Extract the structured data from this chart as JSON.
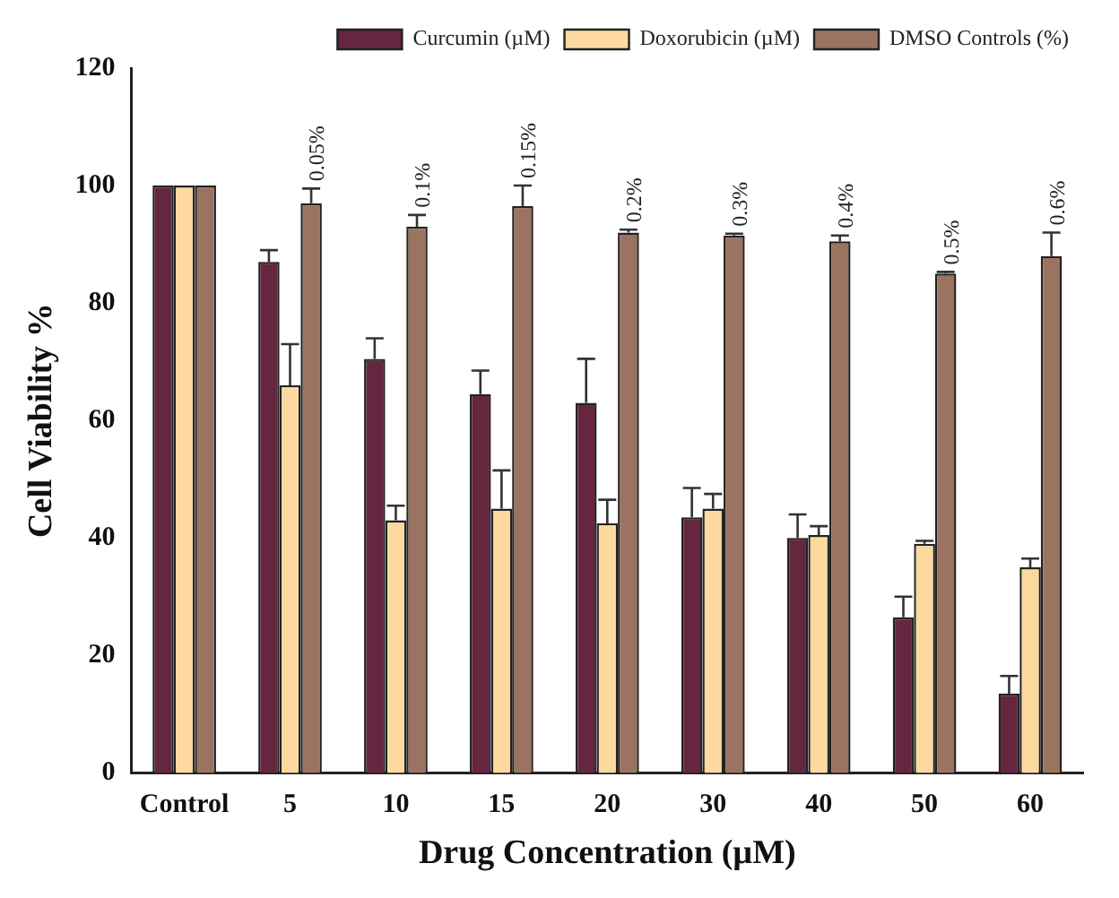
{
  "chart_data": {
    "type": "bar",
    "xlabel": "Drug Concentration (µM)",
    "ylabel": "Cell Viability %",
    "categories": [
      "Control",
      "5",
      "10",
      "15",
      "20",
      "30",
      "40",
      "50",
      "60"
    ],
    "series": [
      {
        "name": "Curcumin (µM)",
        "color": "#65263f",
        "values": [
          100,
          87,
          70.5,
          64.5,
          63,
          43.5,
          40,
          26.5,
          13.5
        ],
        "errors": [
          null,
          [
            87,
            89
          ],
          [
            70.5,
            74
          ],
          [
            64.5,
            68.5
          ],
          [
            63,
            70.5
          ],
          [
            43.5,
            48.5
          ],
          [
            40,
            44
          ],
          [
            26.5,
            30
          ],
          [
            13.5,
            16.5
          ]
        ]
      },
      {
        "name": "Doxorubicin (µM)",
        "color": "#fdd9a0",
        "values": [
          100,
          66,
          43,
          45,
          42.5,
          45,
          40.5,
          39,
          35
        ],
        "errors": [
          null,
          [
            66,
            73
          ],
          [
            43,
            45.5
          ],
          [
            45,
            51.5
          ],
          [
            42.5,
            46.5
          ],
          [
            45,
            47.5
          ],
          [
            40.5,
            42
          ],
          [
            39,
            39.5
          ],
          [
            35,
            36.5
          ]
        ]
      },
      {
        "name": "DMSO Controls (%)",
        "color": "#9b7360",
        "values": [
          100,
          97,
          93,
          96.5,
          92,
          91.5,
          90.5,
          85,
          88
        ],
        "errors": [
          null,
          [
            97,
            99.5
          ],
          [
            93,
            95
          ],
          [
            96.5,
            100
          ],
          [
            92,
            92.5
          ],
          [
            91.5,
            91.8
          ],
          [
            90.5,
            91.5
          ],
          [
            85,
            85.3
          ],
          [
            88,
            92
          ]
        ]
      }
    ],
    "annotations": [
      "0.05%",
      "0.1%",
      "0.15%",
      "0.2%",
      "0.3%",
      "0.4%",
      "0.5%",
      "0.6%"
    ],
    "ylim": [
      0,
      120
    ],
    "yticks": [
      0,
      20,
      40,
      60,
      80,
      100,
      120
    ],
    "grid": false,
    "legend": "top right"
  }
}
